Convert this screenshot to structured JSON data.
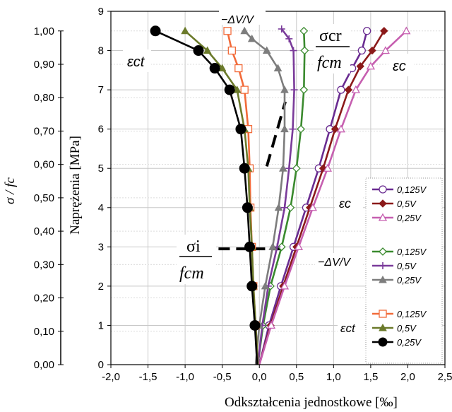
{
  "chart_data": {
    "type": "line",
    "xlabel": "Odkształcenia jednostkowe [‰]",
    "ylabel": "Naprężenia [MPa]",
    "y2label": "σ / fc",
    "xlim": [
      -2.0,
      2.5
    ],
    "ylim": [
      0,
      9
    ],
    "x_ticks": [
      "-2,0",
      "-1,5",
      "-1,0",
      "-0,5",
      "0,0",
      "0,5",
      "1,0",
      "1,5",
      "2,0",
      "2,5"
    ],
    "y_ticks": [
      "0",
      "1",
      "2",
      "3",
      "4",
      "5",
      "6",
      "7",
      "8",
      "9"
    ],
    "y2_ticks": [
      "0,00",
      "0,10",
      "0,20",
      "0,30",
      "0,40",
      "0,50",
      "0,60",
      "0,70",
      "0,80",
      "0,90",
      "1,00"
    ],
    "y2_max_ratio": 1.0,
    "y2_ratio_at_y": 8.5,
    "grid": true,
    "legend_position": "right",
    "annotations": {
      "delta_v_top": "−ΔV/V",
      "sigma_cr": "σcr",
      "sigma_i": "σi",
      "f_cm": "fcm",
      "eps_ct": "εct",
      "eps_c": "εc",
      "legend_eps_c": "εc",
      "legend_delta_v": "−ΔV/V",
      "legend_eps_ct": "εct",
      "sigma_i_level": 2.95,
      "sigma_cr_line": [
        [
          0.1,
          5.05
        ],
        [
          0.35,
          6.7
        ]
      ]
    },
    "legend_groups": [
      {
        "title": "εc",
        "items": [
          {
            "label": "0,125V",
            "color": "#6a2c91",
            "marker": "circle-open"
          },
          {
            "label": "0,5V",
            "color": "#8b1a1a",
            "marker": "diamond"
          },
          {
            "label": "0,25V",
            "color": "#c65fb0",
            "marker": "triangle-open"
          }
        ]
      },
      {
        "title": "−ΔV/V",
        "items": [
          {
            "label": "0,125V",
            "color": "#3a8a2e",
            "marker": "diamond-open"
          },
          {
            "label": "0,5V",
            "color": "#7a3b9a",
            "marker": "plus"
          },
          {
            "label": "0,25V",
            "color": "#7d7d7d",
            "marker": "triangle"
          }
        ]
      },
      {
        "title": "εct",
        "items": [
          {
            "label": "0,125V",
            "color": "#f26b3a",
            "marker": "square-open"
          },
          {
            "label": "0,5V",
            "color": "#6b7a2a",
            "marker": "triangle"
          },
          {
            "label": "0,25V",
            "color": "#000000",
            "marker": "circle"
          }
        ]
      }
    ],
    "series": [
      {
        "group": "εc",
        "label": "0,125V",
        "color": "#6a2c91",
        "marker": "circle-open",
        "points": [
          [
            0,
            0
          ],
          [
            0.13,
            1
          ],
          [
            0.29,
            2
          ],
          [
            0.46,
            3
          ],
          [
            0.63,
            4
          ],
          [
            0.8,
            5
          ],
          [
            0.95,
            6
          ],
          [
            1.1,
            7
          ],
          [
            1.25,
            7.55
          ],
          [
            1.38,
            8
          ],
          [
            1.45,
            8.5
          ]
        ]
      },
      {
        "group": "εc",
        "label": "0,5V",
        "color": "#8b1a1a",
        "marker": "diamond",
        "points": [
          [
            0,
            0
          ],
          [
            0.15,
            1
          ],
          [
            0.32,
            2
          ],
          [
            0.5,
            3
          ],
          [
            0.68,
            4
          ],
          [
            0.86,
            5
          ],
          [
            1.02,
            6
          ],
          [
            1.2,
            7
          ],
          [
            1.36,
            7.6
          ],
          [
            1.52,
            8
          ],
          [
            1.68,
            8.5
          ]
        ]
      },
      {
        "group": "εc",
        "label": "0,25V",
        "color": "#c65fb0",
        "marker": "triangle-open",
        "points": [
          [
            0,
            0
          ],
          [
            0.16,
            1
          ],
          [
            0.34,
            2
          ],
          [
            0.53,
            3
          ],
          [
            0.72,
            4
          ],
          [
            0.92,
            5
          ],
          [
            1.1,
            6
          ],
          [
            1.3,
            7
          ],
          [
            1.5,
            7.6
          ],
          [
            1.7,
            8
          ],
          [
            1.98,
            8.5
          ]
        ]
      },
      {
        "group": "−ΔV/V",
        "label": "0,125V",
        "color": "#3a8a2e",
        "marker": "diamond-open",
        "points": [
          [
            -0.02,
            0
          ],
          [
            0.05,
            1
          ],
          [
            0.15,
            2
          ],
          [
            0.3,
            3
          ],
          [
            0.42,
            4
          ],
          [
            0.5,
            5
          ],
          [
            0.56,
            6
          ],
          [
            0.6,
            7
          ],
          [
            0.61,
            8
          ],
          [
            0.6,
            8.5
          ]
        ]
      },
      {
        "group": "−ΔV/V",
        "label": "0,5V",
        "color": "#7a3b9a",
        "marker": "plus",
        "points": [
          [
            -0.02,
            0
          ],
          [
            0.04,
            1
          ],
          [
            0.12,
            2
          ],
          [
            0.24,
            3
          ],
          [
            0.34,
            4
          ],
          [
            0.4,
            5
          ],
          [
            0.45,
            6
          ],
          [
            0.47,
            7
          ],
          [
            0.46,
            8
          ],
          [
            0.4,
            8.3
          ],
          [
            0.3,
            8.55
          ]
        ]
      },
      {
        "group": "−ΔV/V",
        "label": "0,25V",
        "color": "#7d7d7d",
        "marker": "triangle",
        "points": [
          [
            -0.05,
            0
          ],
          [
            0,
            1
          ],
          [
            0.08,
            2
          ],
          [
            0.18,
            3
          ],
          [
            0.26,
            4
          ],
          [
            0.32,
            5
          ],
          [
            0.34,
            6
          ],
          [
            0.34,
            7
          ],
          [
            0.25,
            7.55
          ],
          [
            0.1,
            8
          ],
          [
            -0.1,
            8.3
          ],
          [
            -0.2,
            8.5
          ]
        ]
      },
      {
        "group": "εct",
        "label": "0,125V",
        "color": "#f26b3a",
        "marker": "square-open",
        "points": [
          [
            -0.02,
            0
          ],
          [
            -0.05,
            1
          ],
          [
            -0.08,
            2
          ],
          [
            -0.1,
            3
          ],
          [
            -0.12,
            4
          ],
          [
            -0.13,
            5
          ],
          [
            -0.15,
            6
          ],
          [
            -0.2,
            7
          ],
          [
            -0.28,
            7.55
          ],
          [
            -0.37,
            8
          ],
          [
            -0.43,
            8.5
          ]
        ]
      },
      {
        "group": "εct",
        "label": "0,5V",
        "color": "#6b7a2a",
        "marker": "triangle",
        "points": [
          [
            -0.02,
            0
          ],
          [
            -0.05,
            1
          ],
          [
            -0.08,
            2
          ],
          [
            -0.1,
            3
          ],
          [
            -0.13,
            4
          ],
          [
            -0.15,
            5
          ],
          [
            -0.2,
            6
          ],
          [
            -0.3,
            7
          ],
          [
            -0.5,
            7.55
          ],
          [
            -0.7,
            8
          ],
          [
            -1.0,
            8.5
          ]
        ]
      },
      {
        "group": "εct",
        "label": "0,25V",
        "color": "#000000",
        "marker": "circle",
        "points": [
          [
            -0.03,
            0
          ],
          [
            -0.06,
            1
          ],
          [
            -0.1,
            2
          ],
          [
            -0.13,
            3
          ],
          [
            -0.16,
            4
          ],
          [
            -0.2,
            5
          ],
          [
            -0.25,
            6
          ],
          [
            -0.4,
            7
          ],
          [
            -0.6,
            7.55
          ],
          [
            -0.82,
            8
          ],
          [
            -1.4,
            8.5
          ]
        ]
      }
    ]
  }
}
